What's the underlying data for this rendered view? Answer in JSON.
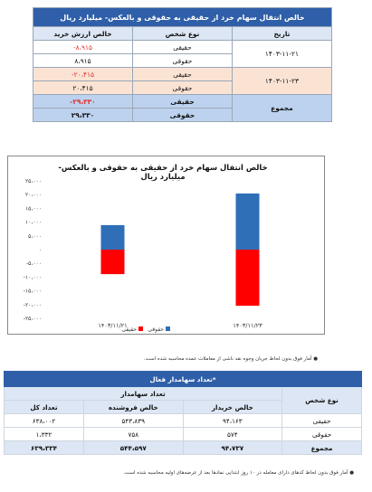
{
  "table1": {
    "title": "خالص انتقال سهام خرد از حقیقی به حقوقی و بالعکس- میلیارد ریال",
    "headers": {
      "date": "تاریخ",
      "type": "نوع شخص",
      "value": "خالص ارزش خرید"
    },
    "rows": [
      {
        "date": "۱۴۰۳-۱۱-۲۱",
        "type": "حقیقی",
        "value": "-۸،۹۱۵"
      },
      {
        "type": "حقوقی",
        "value": "۸،۹۱۵"
      },
      {
        "date": "۱۴۰۳-۱۱-۲۳",
        "type": "حقیقی",
        "value": "-۲۰،۴۱۵"
      },
      {
        "type": "حقوقی",
        "value": "۲۰،۴۱۵"
      },
      {
        "date": "مجموع",
        "type": "حقیقی",
        "value": "-۲۹،۳۳۰"
      },
      {
        "type": "حقوقی",
        "value": "۲۹،۳۳۰"
      }
    ]
  },
  "chart_data": {
    "type": "bar",
    "title": "خالص انتقال سهام خرد از حقیقی به حقوقی و بالعکس- میلیارد ریال",
    "categories": [
      "۱۴۰۳/۱۱/۲۱",
      "۱۴۰۳/۱۱/۲۳"
    ],
    "series": [
      {
        "name": "حقیقی",
        "values": [
          -8915,
          -20415
        ],
        "color": "#ff0000"
      },
      {
        "name": "حقوقی",
        "values": [
          8915,
          20415
        ],
        "color": "#2e6fb8"
      }
    ],
    "ylim": [
      -25000,
      25000
    ],
    "yticks": [
      25000,
      20000,
      15000,
      10000,
      5000,
      0,
      -5000,
      -10000,
      -15000,
      -20000,
      -25000
    ],
    "ytick_labels": [
      "۲۵،۰۰۰",
      "۲۰،۰۰۰",
      "۱۵،۰۰۰",
      "۱۰،۰۰۰",
      "۵،۰۰۰",
      "۰",
      "-۵،۰۰۰",
      "-۱۰،۰۰۰",
      "-۱۵،۰۰۰",
      "-۲۰،۰۰۰",
      "-۲۵،۰۰۰"
    ],
    "legend": "bottom-center"
  },
  "note1": "آمار فوق بدون لحاظ جریان وجوه نقد ناشی از معاملات عمده محاسبه شده است.",
  "table2": {
    "title": "تعداد سهامدار فعال*",
    "type_header": "نوع شخص",
    "group_header": "تعداد سهامدار",
    "cols": {
      "buyer": "خالص خریدار",
      "seller": "خالص فروشنده",
      "total": "تعداد کل"
    },
    "rows": [
      {
        "type": "حقیقی",
        "buyer": "۹۴،۱۶۳",
        "seller": "۵۴۳،۸۳۹",
        "total": "۶۳۸،۰۰۲"
      },
      {
        "type": "حقوقی",
        "buyer": "۵۷۴",
        "seller": "۷۵۸",
        "total": "۱،۳۳۲"
      },
      {
        "type": "مجموع",
        "buyer": "۹۴،۷۳۷",
        "seller": "۵۴۴،۵۹۷",
        "total": "۶۳۹،۳۳۴"
      }
    ]
  },
  "note2": "آمار فوق بدون لحاظ کدهای دارای معامله در ۱۰ روز ابتدایی نمادها بعد از عرضه‌های اولیه محاسبه شده است."
}
